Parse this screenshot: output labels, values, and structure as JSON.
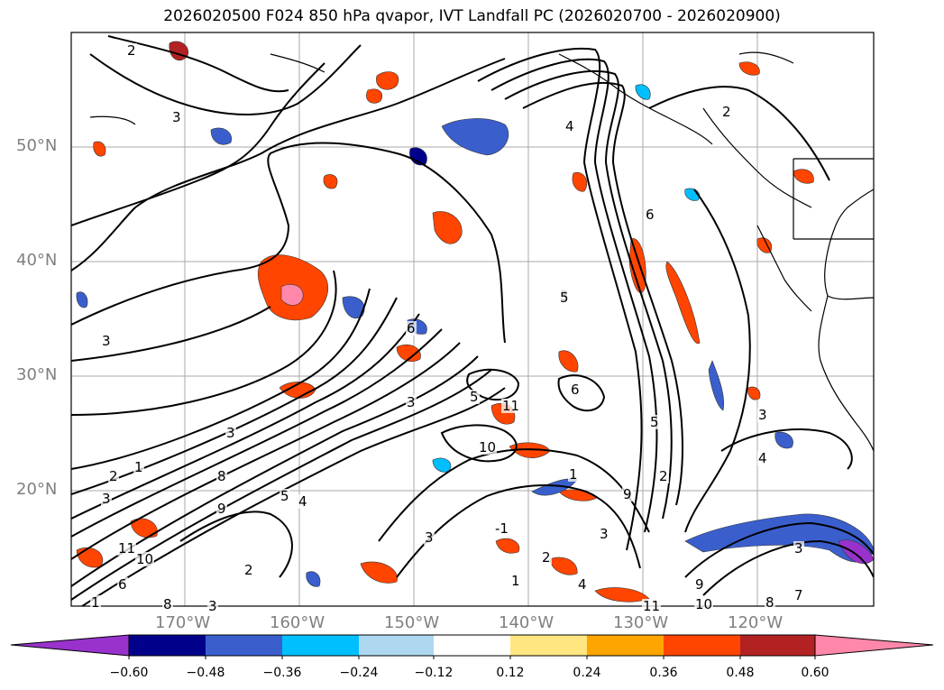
{
  "title": "2026020500 F024 850 hPa qvapor, IVT Landfall PC (2026020700 - 2026020900)",
  "map": {
    "lat_labels": [
      "50°N",
      "40°N",
      "30°N",
      "20°N"
    ],
    "lon_labels": [
      "170°W",
      "160°W",
      "150°W",
      "140°W",
      "130°W",
      "120°W"
    ],
    "contour_labels": [
      "2",
      "3",
      "3",
      "4",
      "6",
      "6",
      "2",
      "3",
      "5",
      "4",
      "3",
      "3",
      "1",
      "2",
      "3",
      "8",
      "9",
      "10",
      "11",
      "1",
      "2",
      "3",
      "4",
      "5",
      "6",
      "8",
      "9",
      "10",
      "11",
      "6",
      "5",
      "1",
      "2",
      "3",
      "4",
      "3",
      "7",
      "8",
      "9",
      "10",
      "11",
      "-1",
      "1",
      "2",
      "3",
      "3",
      "5"
    ]
  },
  "colorbar": {
    "ticks": [
      "−0.60",
      "−0.48",
      "−0.36",
      "−0.24",
      "−0.12",
      "0.12",
      "0.24",
      "0.36",
      "0.48",
      "0.60"
    ],
    "colors": [
      "#9932cc",
      "#00008b",
      "#3a5fcd",
      "#00bfff",
      "#add8f0",
      "#ffffff",
      "#ffe680",
      "#ffa500",
      "#ff4500",
      "#b22222",
      "#ff88aa"
    ]
  }
}
